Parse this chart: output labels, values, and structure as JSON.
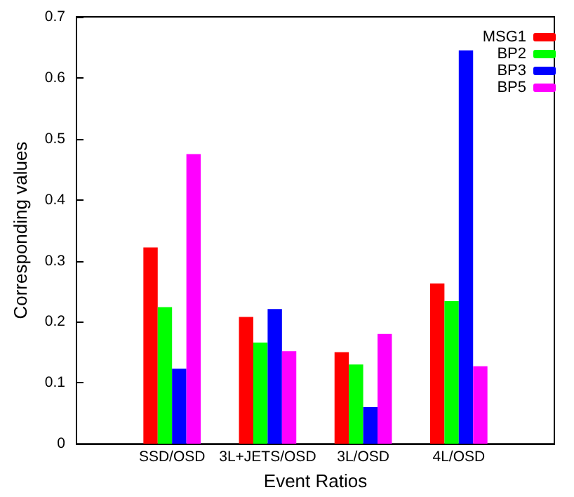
{
  "chart_data": {
    "type": "bar",
    "xlabel": "Event Ratios",
    "ylabel": "Corresponding values",
    "categories": [
      null,
      "SSD/OSD",
      "3L+JETS/OSD",
      "3L/OSD",
      "4L/OSD",
      null
    ],
    "series": [
      {
        "name": "MSG1",
        "color": "#ff0000",
        "values": [
          null,
          0.322,
          0.208,
          0.15,
          0.263,
          null
        ]
      },
      {
        "name": "BP2",
        "color": "#00ff00",
        "values": [
          null,
          0.224,
          0.166,
          0.13,
          0.234,
          null
        ]
      },
      {
        "name": "BP3",
        "color": "#0000ff",
        "values": [
          null,
          0.123,
          0.221,
          0.06,
          0.645,
          null
        ]
      },
      {
        "name": "BP5",
        "color": "#ff00ff",
        "values": [
          null,
          0.475,
          0.152,
          0.18,
          0.127,
          null
        ]
      }
    ],
    "ylim": [
      0,
      0.7
    ],
    "yticks": [
      0,
      0.1,
      0.2,
      0.3,
      0.4,
      0.5,
      0.6,
      0.7
    ],
    "grid": false,
    "legend": "top right"
  }
}
